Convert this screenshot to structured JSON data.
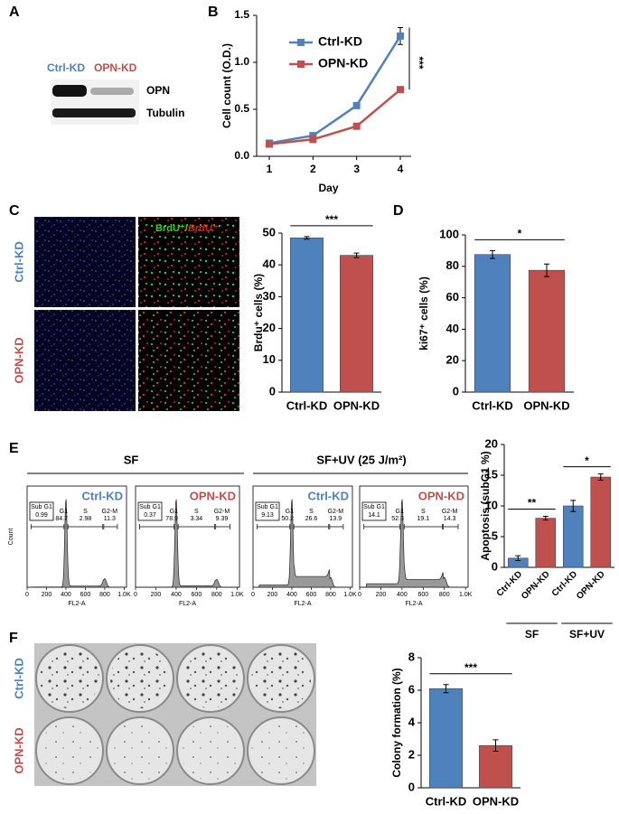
{
  "figure": {
    "letters": [
      "A",
      "B",
      "C",
      "D",
      "E",
      "F"
    ],
    "blot": {
      "groups": [
        "Ctrl-KD",
        "OPN-KD"
      ],
      "bands": [
        "OPN",
        "Tubulin"
      ]
    },
    "brdu_images": {
      "rows": [
        "Ctrl-KD",
        "OPN-KD"
      ],
      "legend_pos": "BrdU⁺/",
      "legend_neg": "BrdU⁻"
    },
    "flow": {
      "conditions": [
        "SF",
        "SF+UV (25 J/m²)"
      ],
      "gates": [
        "Sub G1",
        "G1",
        "S",
        "G2-M"
      ],
      "xlim": [
        0,
        1024
      ],
      "xticks": [
        0,
        200,
        400,
        600,
        800,
        {
          "value": 1000,
          "label": "1.0K"
        }
      ],
      "xlabel": "FL2-A",
      "ylabel": "Count",
      "panels": [
        {
          "label": "Ctrl-KD",
          "color": "#4f81bd",
          "subg1": 0.99,
          "g1": 84.7,
          "s": 2.98,
          "g2m": 11.3
        },
        {
          "label": "OPN-KD",
          "color": "#c0504d",
          "subg1": 0.37,
          "g1": 78.9,
          "s": 3.34,
          "g2m": 9.39
        },
        {
          "label": "Ctrl-KD",
          "color": "#4f81bd",
          "subg1": 9.13,
          "g1": 50.2,
          "s": 26.6,
          "g2m": 13.9
        },
        {
          "label": "OPN-KD",
          "color": "#c0504d",
          "subg1": 14.1,
          "g1": 52.3,
          "s": 19.1,
          "g2m": 14.3
        }
      ]
    },
    "colony_images": {
      "rows": [
        "Ctrl-KD",
        "OPN-KD"
      ]
    }
  },
  "chart_data": [
    {
      "type": "line",
      "x": [
        1,
        2,
        3,
        4
      ],
      "xlim": [
        1,
        4
      ],
      "xticks": [
        1,
        2,
        3,
        4
      ],
      "ylim": [
        0,
        1.5
      ],
      "yticks": [
        {
          "value": 0,
          "label": "0.0"
        },
        {
          "value": 0.5,
          "label": "0.5"
        },
        {
          "value": 1,
          "label": "1.0"
        },
        {
          "value": 1.5,
          "label": "1.5"
        }
      ],
      "xlabel": "Day",
      "ylabel": "Cell count (O.D.)",
      "annotation": "***",
      "legend": "top-left",
      "series": [
        {
          "name": "Ctrl-KD",
          "color": "#4f81bd",
          "values": [
            0.14,
            0.22,
            0.54,
            1.28
          ],
          "errors": [
            0.01,
            0.02,
            0.02,
            0.09
          ]
        },
        {
          "name": "OPN-KD",
          "color": "#c0504d",
          "values": [
            0.13,
            0.18,
            0.32,
            0.71
          ],
          "errors": [
            0.01,
            0.01,
            0.02,
            0.02
          ]
        }
      ]
    },
    {
      "type": "bar",
      "categories": [
        "Ctrl-KD",
        "OPN-KD"
      ],
      "values": [
        48.5,
        43
      ],
      "errors": [
        0.4,
        0.7
      ],
      "colors": [
        "#4f81bd",
        "#c0504d"
      ],
      "ylim": [
        0,
        50
      ],
      "yticks": [
        0,
        10,
        20,
        30,
        40,
        50
      ],
      "ylabel": "Brdu⁺ cells (%)",
      "annotation": "***"
    },
    {
      "type": "bar",
      "categories": [
        "Ctrl-KD",
        "OPN-KD"
      ],
      "values": [
        87.5,
        77.5
      ],
      "errors": [
        2.5,
        4
      ],
      "colors": [
        "#4f81bd",
        "#c0504d"
      ],
      "ylim": [
        0,
        100
      ],
      "yticks": [
        0,
        20,
        40,
        60,
        80,
        100
      ],
      "ylabel": "ki67⁺ cells (%)",
      "annotation": "*"
    },
    {
      "type": "bar",
      "categories": [
        "Ctrl-KD",
        "OPN-KD",
        "Ctrl-KD",
        "OPN-KD"
      ],
      "values": [
        1.5,
        8,
        10,
        14.7
      ],
      "errors": [
        0.4,
        0.3,
        0.9,
        0.5
      ],
      "colors": [
        "#4f81bd",
        "#c0504d",
        "#4f81bd",
        "#c0504d"
      ],
      "ylim": [
        0,
        20
      ],
      "yticks": [
        0,
        5,
        10,
        15,
        20
      ],
      "ylabel": "Apoptosis (subG1 %)",
      "groups": [
        {
          "name": "SF",
          "annotation": "**"
        },
        {
          "name": "SF+UV",
          "annotation": "*"
        }
      ]
    },
    {
      "type": "bar",
      "categories": [
        "Ctrl-KD",
        "OPN-KD"
      ],
      "values": [
        6.1,
        2.6
      ],
      "errors": [
        0.25,
        0.35
      ],
      "colors": [
        "#4f81bd",
        "#c0504d"
      ],
      "ylim": [
        0,
        8
      ],
      "yticks": [
        0,
        2,
        4,
        6,
        8
      ],
      "ylabel": "Colony formation (%)",
      "annotation": "***"
    }
  ]
}
